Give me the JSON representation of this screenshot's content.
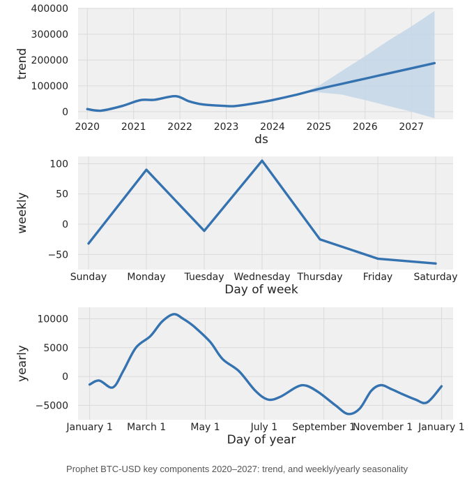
{
  "caption": "Prophet BTC-USD key components 2020–2027: trend, and weekly/yearly seasonality",
  "colors": {
    "line": "#3572b0",
    "band": "#c3d6e8",
    "panel_bg": "#f0f0f0",
    "grid": "#dadada",
    "text": "#222222"
  },
  "chart_data": [
    {
      "type": "line",
      "xlabel": "ds",
      "ylabel": "trend",
      "xlim": [
        2019.8,
        2027.9
      ],
      "ylim": [
        -30000,
        400000
      ],
      "x_ticks": [
        2020,
        2021,
        2022,
        2023,
        2024,
        2025,
        2026,
        2027
      ],
      "x_tick_labels": [
        "2020",
        "2021",
        "2022",
        "2023",
        "2024",
        "2025",
        "2026",
        "2027"
      ],
      "y_ticks": [
        0,
        100000,
        200000,
        300000,
        400000
      ],
      "y_tick_labels": [
        "0",
        "100000",
        "200000",
        "300000",
        "400000"
      ],
      "grid": true,
      "series": [
        {
          "x": [
            2020.0,
            2020.3,
            2020.75,
            2021.15,
            2021.45,
            2021.9,
            2022.2,
            2022.5,
            2023.0,
            2023.2,
            2023.6,
            2024.0,
            2024.5,
            2025.0,
            2025.5,
            2026.0,
            2026.5,
            2027.0,
            2027.5
          ],
          "y": [
            10000,
            4000,
            22000,
            45000,
            46000,
            60000,
            40000,
            28000,
            22000,
            22000,
            32000,
            45000,
            65000,
            88000,
            108000,
            128000,
            148000,
            168000,
            188000
          ]
        }
      ],
      "uncertainty_band": {
        "x": [
          2024.7,
          2025.0,
          2025.5,
          2026.0,
          2026.5,
          2027.0,
          2027.5
        ],
        "lower": [
          75000,
          75000,
          66000,
          45000,
          22000,
          0,
          -25000
        ],
        "upper": [
          76000,
          100000,
          158000,
          215000,
          275000,
          330000,
          390000
        ]
      }
    },
    {
      "type": "line",
      "xlabel": "Day of week",
      "ylabel": "weekly",
      "ylim": [
        -75,
        112
      ],
      "categories": [
        "Sunday",
        "Monday",
        "Tuesday",
        "Wednesday",
        "Thursday",
        "Friday",
        "Saturday"
      ],
      "y_ticks": [
        100,
        50,
        0,
        -50
      ],
      "y_tick_labels": [
        "100",
        "50",
        "0",
        "−50"
      ],
      "grid": true,
      "series": [
        {
          "values": [
            -32,
            90,
            -11,
            105,
            -25,
            -57,
            -65
          ]
        }
      ]
    },
    {
      "type": "line",
      "xlabel": "Day of year",
      "ylabel": "yearly",
      "xlim": [
        -12,
        377
      ],
      "ylim": [
        -7500,
        12000
      ],
      "x_ticks": [
        0,
        59,
        120,
        181,
        243,
        304,
        365
      ],
      "x_tick_labels": [
        "January 1",
        "March 1",
        "May 1",
        "July 1",
        "September 1",
        "November 1",
        "January 1"
      ],
      "y_ticks": [
        10000,
        5000,
        0,
        -5000
      ],
      "y_tick_labels": [
        "10000",
        "5000",
        "0",
        "−5000"
      ],
      "grid": true,
      "series": [
        {
          "x": [
            0,
            10,
            24,
            35,
            48,
            63,
            75,
            87,
            97,
            108,
            125,
            138,
            155,
            172,
            185,
            198,
            215,
            225,
            238,
            255,
            268,
            280,
            292,
            302,
            313,
            325,
            338,
            350,
            365
          ],
          "y": [
            -1400,
            -700,
            -1900,
            1000,
            5000,
            7000,
            9500,
            10800,
            10000,
            8700,
            6000,
            3000,
            900,
            -2500,
            -4000,
            -3500,
            -1800,
            -1600,
            -2800,
            -5000,
            -6500,
            -5600,
            -2500,
            -1500,
            -2200,
            -3100,
            -4000,
            -4500,
            -1700
          ]
        }
      ]
    }
  ]
}
